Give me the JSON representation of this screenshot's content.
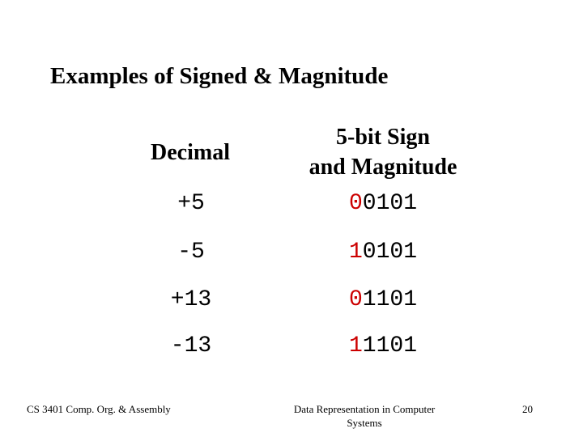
{
  "title": "Examples of Signed & Magnitude",
  "table": {
    "headers": [
      [
        "Decimal"
      ],
      [
        "5-bit Sign",
        "and Magnitude"
      ]
    ],
    "rows": [
      {
        "decimal": "+5",
        "sign": "0",
        "magnitude": "0101"
      },
      {
        "decimal": "-5",
        "sign": "1",
        "magnitude": "0101"
      },
      {
        "decimal": "+13",
        "sign": "0",
        "magnitude": "1101"
      },
      {
        "decimal": "-13",
        "sign": "1",
        "magnitude": "1101"
      }
    ]
  },
  "footer": {
    "left": "CS 3401 Comp. Org. & Assembly",
    "center": [
      "Data Representation in Computer",
      "Systems"
    ],
    "right": "20"
  }
}
